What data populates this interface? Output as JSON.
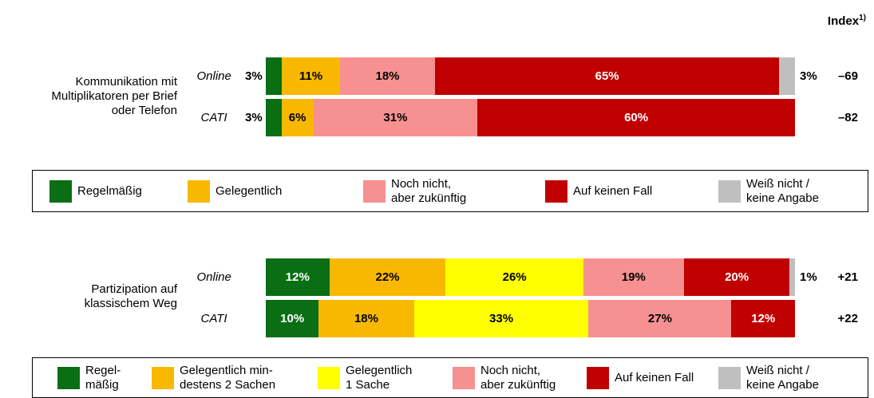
{
  "index_header": {
    "text": "Index",
    "sup": "1)"
  },
  "chart_data": [
    {
      "type": "stacked_bar_h",
      "label": "Kommunikation mit\nMultiplikatoren per Brief\noder Telefon",
      "categories": [
        "Online",
        "CATI"
      ],
      "xlim": [
        0,
        100
      ],
      "series": [
        {
          "name": "Regelmäßig",
          "color": "#0a6e14",
          "values": [
            3,
            3
          ],
          "value_labels": [
            "3%",
            "3%"
          ]
        },
        {
          "name": "Gelegentlich",
          "color": "#f9b800",
          "values": [
            11,
            6
          ],
          "value_labels": [
            "11%",
            "6%"
          ]
        },
        {
          "name": "Noch nicht,\naber zukünftig",
          "color": "#f79191",
          "values": [
            18,
            31
          ],
          "value_labels": [
            "18%",
            "31%"
          ]
        },
        {
          "name": "Auf keinen Fall",
          "color": "#c00000",
          "values": [
            65,
            60
          ],
          "value_labels": [
            "65%",
            "60%"
          ]
        },
        {
          "name": "Weiß nicht /\nkeine Angabe",
          "color": "#bfbfbf",
          "values": [
            3,
            null
          ],
          "value_labels": [
            "3%",
            null
          ]
        }
      ],
      "index": {
        "values": [
          -69,
          -82
        ],
        "value_labels": [
          "–69",
          "–82"
        ]
      }
    },
    {
      "type": "stacked_bar_h",
      "label": "Partizipation auf\nklassischem Weg",
      "categories": [
        "Online",
        "CATI"
      ],
      "xlim": [
        0,
        100
      ],
      "series": [
        {
          "name": "Regel-\nmäßig",
          "color": "#0a6e14",
          "values": [
            12,
            10
          ],
          "value_labels": [
            "12%",
            "10%"
          ]
        },
        {
          "name": "Gelegentlich min-\ndestens 2 Sachen",
          "color": "#f9b800",
          "values": [
            22,
            18
          ],
          "value_labels": [
            "22%",
            "18%"
          ]
        },
        {
          "name": "Gelegentlich\n1 Sache",
          "color": "#ffff00",
          "values": [
            26,
            33
          ],
          "value_labels": [
            "26%",
            "33%"
          ]
        },
        {
          "name": "Noch nicht,\naber zukünftig",
          "color": "#f79191",
          "values": [
            19,
            27
          ],
          "value_labels": [
            "19%",
            "27%"
          ]
        },
        {
          "name": "Auf keinen Fall",
          "color": "#c00000",
          "values": [
            20,
            12
          ],
          "value_labels": [
            "20%",
            "12%"
          ]
        },
        {
          "name": "Weiß nicht /\nkeine Angabe",
          "color": "#bfbfbf",
          "values": [
            1,
            null
          ],
          "value_labels": [
            "1%",
            null
          ]
        }
      ],
      "index": {
        "values": [
          21,
          22
        ],
        "value_labels": [
          "+21",
          "+22"
        ]
      }
    }
  ]
}
